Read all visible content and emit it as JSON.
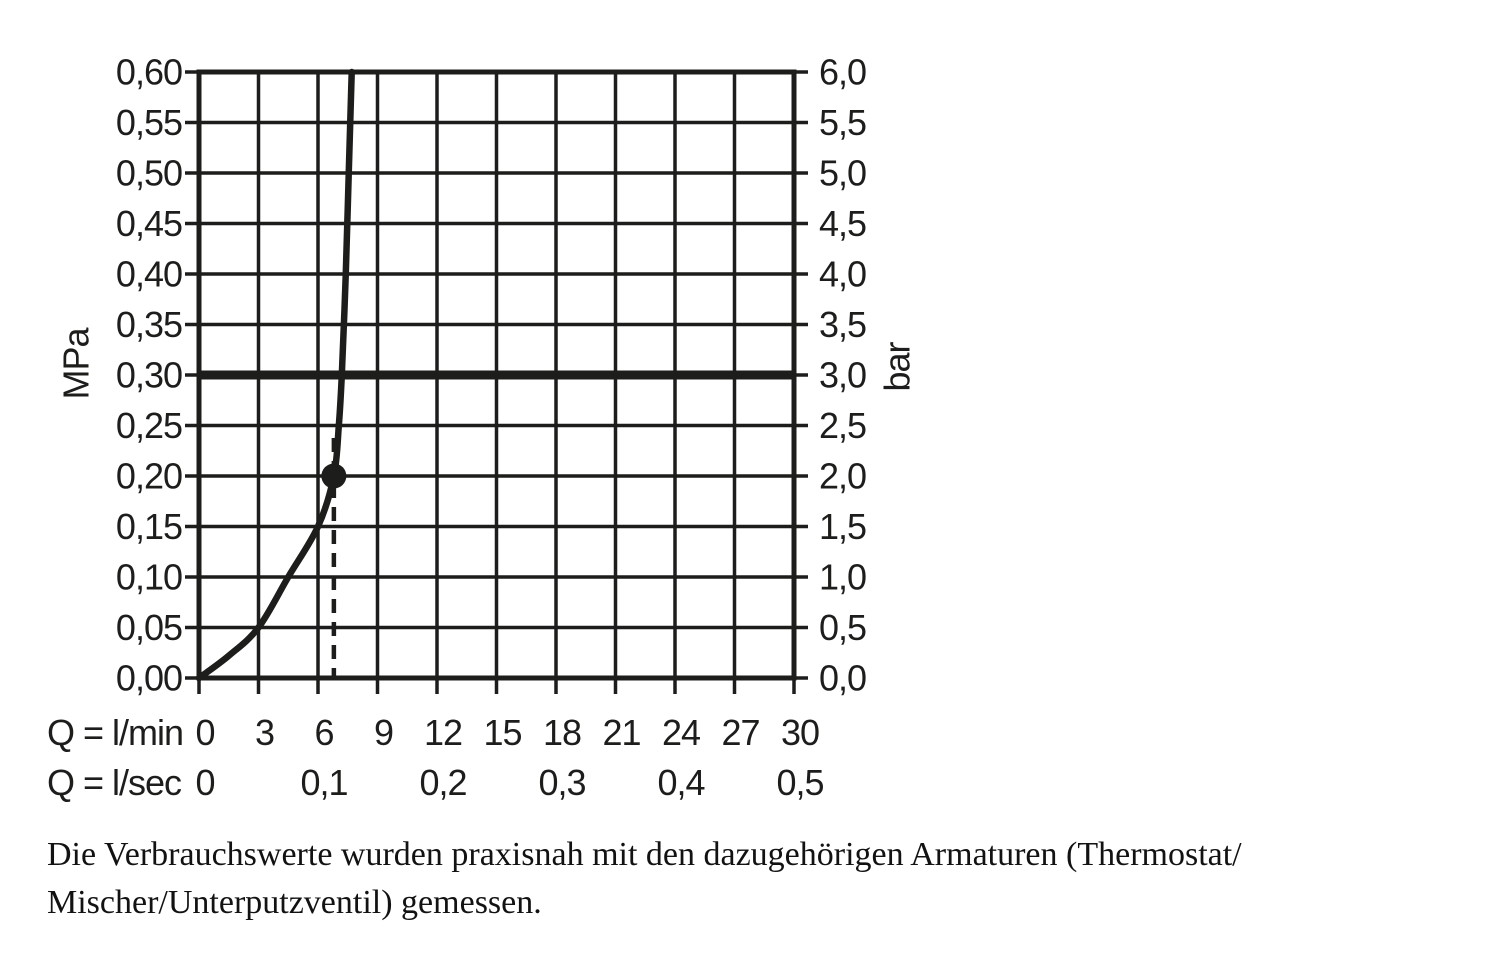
{
  "colors": {
    "ink": "#1d1d1b",
    "background": "#ffffff"
  },
  "chart_data": {
    "type": "line",
    "grid": true,
    "x": {
      "min": 0,
      "max": 30,
      "step": 3,
      "row1_label": "Q = l/min",
      "row2_label": "Q = l/sec",
      "ticks_lmin": [
        "0",
        "3",
        "6",
        "9",
        "12",
        "15",
        "18",
        "21",
        "24",
        "27",
        "30"
      ],
      "ticks_lsec": [
        {
          "value": 0,
          "label": "0"
        },
        {
          "value": 6,
          "label": "0,1"
        },
        {
          "value": 12,
          "label": "0,2"
        },
        {
          "value": 18,
          "label": "0,3"
        },
        {
          "value": 24,
          "label": "0,4"
        },
        {
          "value": 30,
          "label": "0,5"
        }
      ]
    },
    "y_left": {
      "label": "MPa",
      "min": 0,
      "max": 0.6,
      "step": 0.05,
      "ticks_top_to_bottom": [
        "0,60",
        "0,55",
        "0,50",
        "0,45",
        "0,40",
        "0,35",
        "0,30",
        "0,25",
        "0,20",
        "0,15",
        "0,10",
        "0,05",
        "0,00"
      ]
    },
    "y_right": {
      "label": "bar",
      "min": 0,
      "max": 6.0,
      "step": 0.5,
      "ticks_top_to_bottom": [
        "6,0",
        "5,5",
        "5,0",
        "4,5",
        "4,0",
        "3,5",
        "3,0",
        "2,5",
        "2,0",
        "1,5",
        "1,0",
        "0,5",
        "0,0"
      ]
    },
    "series": [
      {
        "name": "flow-curve",
        "points_lmin_mpa": [
          [
            0,
            0
          ],
          [
            1.5,
            0.022
          ],
          [
            3,
            0.05
          ],
          [
            4.5,
            0.1
          ],
          [
            6,
            0.15
          ],
          [
            6.8,
            0.2
          ],
          [
            7.05,
            0.25
          ],
          [
            7.2,
            0.3
          ],
          [
            7.4,
            0.4
          ],
          [
            7.55,
            0.5
          ],
          [
            7.7,
            0.6
          ]
        ]
      }
    ],
    "reference_line_mpa": 0.3,
    "marker": {
      "q_lmin": 6.8,
      "p_mpa": 0.2
    },
    "dashed_drop_line": {
      "q_lmin": 6.8,
      "from_mpa": 0.2,
      "to_mpa": 0
    }
  },
  "caption": {
    "line1": "Die Verbrauchswerte wurden praxisnah mit den dazugehörigen Armaturen (Thermostat/",
    "line2": "Mischer/Unterputzventil) gemessen."
  }
}
